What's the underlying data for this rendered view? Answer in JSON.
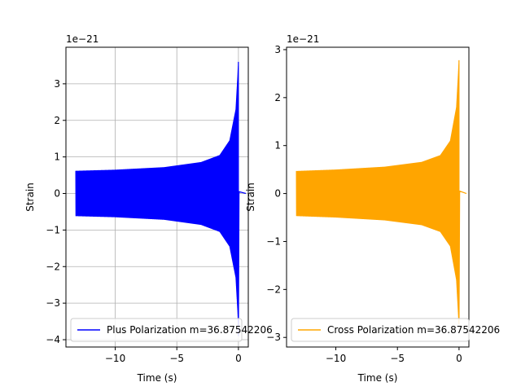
{
  "chart_data": [
    {
      "type": "line",
      "title": "",
      "xlabel": "Time (s)",
      "ylabel": "Strain",
      "offset_text": "1e−21",
      "xlim": [
        -14.0,
        0.8
      ],
      "ylim": [
        -4.2,
        4.0
      ],
      "x_ticks": [
        -10,
        -5,
        0
      ],
      "x_tick_labels": [
        "−10",
        "−5",
        "0"
      ],
      "y_ticks": [
        -4,
        -3,
        -2,
        -1,
        0,
        1,
        2,
        3
      ],
      "y_tick_labels": [
        "−4",
        "−3",
        "−2",
        "−1",
        "0",
        "1",
        "2",
        "3"
      ],
      "grid": true,
      "legend_placement": "lower-left",
      "series": [
        {
          "name": "Plus Polarization m=36.87542206",
          "color": "#0000ff",
          "t_start": -13.2,
          "t_merger": 0.0,
          "envelope": {
            "t": [
              -13.2,
              -10,
              -6,
              -3,
              -1.5,
              -0.7,
              -0.2,
              -0.05,
              0.0
            ],
            "amp": [
              0.62,
              0.65,
              0.72,
              0.86,
              1.05,
              1.45,
              2.3,
              3.2,
              3.6
            ]
          },
          "min_peak": -3.9
        }
      ]
    },
    {
      "type": "line",
      "title": "",
      "xlabel": "Time (s)",
      "ylabel": "Strain",
      "offset_text": "1e−21",
      "xlim": [
        -14.0,
        0.8
      ],
      "ylim": [
        -3.2,
        3.05
      ],
      "x_ticks": [
        -10,
        -5,
        0
      ],
      "x_tick_labels": [
        "−10",
        "−5",
        "0"
      ],
      "y_ticks": [
        -3,
        -2,
        -1,
        0,
        1,
        2,
        3
      ],
      "y_tick_labels": [
        "−3",
        "−2",
        "−1",
        "0",
        "1",
        "2",
        "3"
      ],
      "grid": false,
      "legend_placement": "lower-left",
      "series": [
        {
          "name": "Cross Polarization m=36.87542206",
          "color": "#ffa500",
          "t_start": -13.2,
          "t_merger": 0.0,
          "envelope": {
            "t": [
              -13.2,
              -10,
              -6,
              -3,
              -1.5,
              -0.7,
              -0.2,
              -0.05,
              0.0
            ],
            "amp": [
              0.47,
              0.5,
              0.56,
              0.66,
              0.8,
              1.1,
              1.8,
              2.5,
              2.78
            ]
          },
          "min_peak": -2.65
        }
      ]
    }
  ]
}
